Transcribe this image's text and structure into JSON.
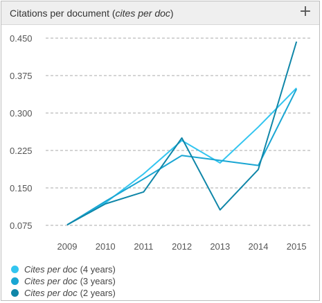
{
  "header": {
    "title_main": "Citations per document",
    "title_italic": "cites per doc",
    "expand_label": "+",
    "expand_icon": "plus-icon"
  },
  "chart_data": {
    "type": "line",
    "title": "Citations per document (cites per doc)",
    "xlabel": "",
    "ylabel": "",
    "x": [
      "2009",
      "2010",
      "2011",
      "2012",
      "2013",
      "2014",
      "2015"
    ],
    "ylim": [
      0.06,
      0.465
    ],
    "yticks": [
      "0.075",
      "0.150",
      "0.225",
      "0.300",
      "0.375",
      "0.450"
    ],
    "ytick_values": [
      0.075,
      0.15,
      0.225,
      0.3,
      0.375,
      0.45
    ],
    "grid": "horizontal dashed",
    "legend_position": "bottom-left",
    "series": [
      {
        "name": "Cites per doc (4 years)",
        "color": "#33c5f0",
        "values": [
          0.076,
          0.12,
          0.178,
          0.245,
          0.2,
          0.272,
          0.35
        ]
      },
      {
        "name": "Cites per doc (3 years)",
        "color": "#1aa6d3",
        "values": [
          0.076,
          0.123,
          0.168,
          0.215,
          0.205,
          0.195,
          0.348
        ]
      },
      {
        "name": "Cites per doc (2 years)",
        "color": "#0f86a8",
        "values": [
          0.076,
          0.118,
          0.142,
          0.25,
          0.106,
          0.187,
          0.443
        ]
      }
    ]
  },
  "legend": [
    {
      "italic": "Cites per doc",
      "suffix": "(4 years)",
      "color": "#33c5f0"
    },
    {
      "italic": "Cites per doc",
      "suffix": "(3 years)",
      "color": "#1aa6d3"
    },
    {
      "italic": "Cites per doc",
      "suffix": "(2 years)",
      "color": "#0f86a8"
    }
  ]
}
